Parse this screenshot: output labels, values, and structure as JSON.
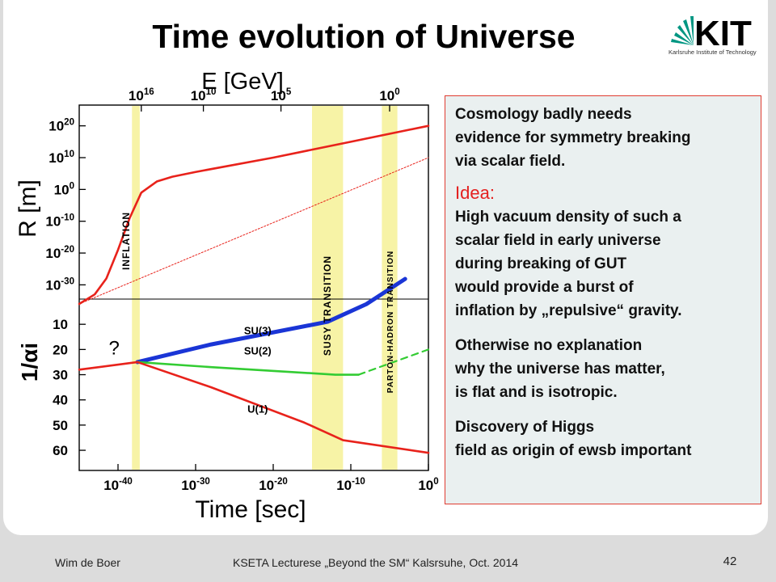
{
  "slide": {
    "title": "Time evolution of Universe",
    "logo_text": "KIT",
    "logo_subtitle": "Karlsruhe Institute of Technology",
    "footer_left": "Wim de Boer",
    "footer_center": "KSETA Lecturese „Beyond the SM“ Kalsrsuhe, Oct. 2014",
    "page_number": "42"
  },
  "textbox": {
    "lines_1": [
      "Cosmology badly needs",
      "evidence for symmetry breaking",
      "via scalar field."
    ],
    "idea_label": "Idea:",
    "lines_2": [
      "High vacuum density of such a",
      "scalar field in early universe",
      "during breaking of GUT",
      "would provide a burst of",
      "inflation by „repulsive“ gravity."
    ],
    "lines_3": [
      "Otherwise no explanation",
      "why the universe has matter,",
      "is flat and is isotropic."
    ],
    "lines_4": [
      "Discovery of Higgs",
      "field as origin of ewsb important"
    ]
  },
  "chart_data": {
    "type": "line",
    "top_axis_label": "E  [GeV]",
    "top_ticks": [
      {
        "label": "10^16",
        "log_time": -37
      },
      {
        "label": "10^10",
        "log_time": -29
      },
      {
        "label": "10^5",
        "log_time": -19
      },
      {
        "label": "10^0",
        "log_time": -5
      }
    ],
    "bottom_axis_label": "Time  [sec]",
    "bottom_ticks": [
      {
        "label": "10^-40",
        "value": -40
      },
      {
        "label": "10^-30",
        "value": -30
      },
      {
        "label": "10^-20",
        "value": -20
      },
      {
        "label": "10^-10",
        "value": -10
      },
      {
        "label": "10^0",
        "value": 0
      }
    ],
    "xlim": [
      -45,
      0
    ],
    "upper_panel": {
      "ylabel": "R  [m]",
      "ytick_labels": [
        "10^20",
        "10^10",
        "10^0",
        "10^-10",
        "10^-20",
        "10^-30"
      ],
      "ytick_values": [
        20,
        10,
        0,
        -10,
        -20,
        -30
      ],
      "ylim": [
        -36,
        25
      ],
      "series": [
        {
          "role": "radius-with-inflation",
          "color": "#e8221b",
          "x": [
            -45,
            -43,
            -41.5,
            -40,
            -38.5,
            -37,
            -35,
            -33,
            -30,
            -20,
            -10,
            0
          ],
          "y": [
            -36,
            -33,
            -28,
            -19,
            -9,
            -1,
            2.5,
            4,
            5.5,
            10,
            15,
            20
          ]
        },
        {
          "role": "radius-without-inflation",
          "color": "#e8221b",
          "dashed": true,
          "x": [
            -45,
            0
          ],
          "y": [
            -36,
            10
          ]
        }
      ]
    },
    "lower_panel": {
      "ylabel": "1/αi",
      "ytick_values": [
        10,
        20,
        30,
        40,
        50,
        60
      ],
      "ylim": [
        0,
        68
      ],
      "question_mark": "?",
      "series": [
        {
          "name": "SU(3)",
          "color": "#1a35d6",
          "x": [
            -37.5,
            -28,
            -13,
            -8,
            -3
          ],
          "y": [
            25,
            18,
            9,
            2,
            -8
          ]
        },
        {
          "name": "SU(2)",
          "color": "#33cc33",
          "x": [
            -37.5,
            -28,
            -12,
            -9
          ],
          "y": [
            25,
            27,
            30,
            30
          ]
        },
        {
          "name": "SU(2)-extension",
          "color": "#33cc33",
          "dashed": true,
          "x": [
            -9,
            0
          ],
          "y": [
            30,
            20
          ]
        },
        {
          "name": "U(1)",
          "color": "#e8221b",
          "x": [
            -37.5,
            -28,
            -16,
            -11,
            0
          ],
          "y": [
            25,
            35,
            49,
            56,
            61
          ]
        },
        {
          "name": "pre-unification",
          "color": "#e8221b",
          "x": [
            -45,
            -37.5
          ],
          "y": [
            28,
            25
          ]
        }
      ]
    },
    "bands": [
      {
        "label": "INFLATION",
        "x_range": [
          -38.2,
          -37.2
        ],
        "color": "#f7f3a6"
      },
      {
        "label": "SUSY TRANSITION",
        "x_range": [
          -15,
          -11
        ],
        "color": "#f7f3a6"
      },
      {
        "label": "PARTON-HADRON TRANSITION",
        "x_range": [
          -6,
          -4
        ],
        "color": "#f7f3a6"
      }
    ]
  }
}
